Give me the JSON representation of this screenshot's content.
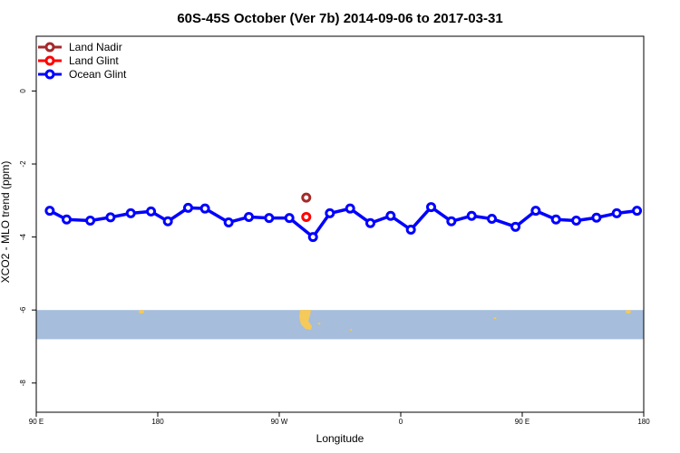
{
  "chart_data": {
    "type": "line",
    "title": "60S-45S October (Ver 7b)   2014-09-06 to 2017-03-31",
    "xlabel": "Longitude",
    "ylabel": "XCO2 - MLO trend (ppm)",
    "x_ticks": [
      {
        "value": 90,
        "label": "90 E"
      },
      {
        "value": 180,
        "label": "180"
      },
      {
        "value": 270,
        "label": "90 W"
      },
      {
        "value": 360,
        "label": "0"
      },
      {
        "value": 450,
        "label": "90 E"
      },
      {
        "value": 540,
        "label": "180"
      }
    ],
    "y_ticks": [
      {
        "value": 0,
        "label": "0"
      },
      {
        "value": -2,
        "label": "-2"
      },
      {
        "value": -4,
        "label": "-4"
      },
      {
        "value": -6,
        "label": "-6"
      },
      {
        "value": -8,
        "label": "-8"
      }
    ],
    "xlim": [
      90,
      540
    ],
    "ylim": [
      -8.8,
      1.5
    ],
    "map_band": {
      "y_top": -6.0,
      "y_bottom": -6.8,
      "color": "#a6bddb",
      "land_color": "#f5c95a"
    },
    "legend": {
      "position": "top-left"
    },
    "series": [
      {
        "name": "Land Nadir",
        "color": "#a52a2a",
        "x": [
          290
        ],
        "y": [
          -2.92
        ]
      },
      {
        "name": "Land Glint",
        "color": "#ff0000",
        "x": [
          290
        ],
        "y": [
          -3.45
        ]
      },
      {
        "name": "Ocean Glint",
        "color": "#0000ff",
        "x": [
          100,
          112.5,
          130,
          145,
          160,
          175,
          187.5,
          202.5,
          215,
          232.5,
          247.5,
          262.5,
          277.5,
          295,
          307.5,
          322.5,
          337.5,
          352.5,
          367.5,
          382.5,
          397.5,
          412.5,
          427.5,
          445,
          460,
          475,
          490,
          505,
          520,
          535
        ],
        "y": [
          -3.28,
          -3.52,
          -3.55,
          -3.46,
          -3.35,
          -3.3,
          -3.57,
          -3.2,
          -3.22,
          -3.6,
          -3.45,
          -3.48,
          -3.48,
          -4.0,
          -3.35,
          -3.22,
          -3.62,
          -3.42,
          -3.8,
          -3.18,
          -3.57,
          -3.42,
          -3.5,
          -3.72,
          -3.28,
          -3.52,
          -3.55,
          -3.47,
          -3.35,
          -3.28
        ]
      }
    ]
  }
}
